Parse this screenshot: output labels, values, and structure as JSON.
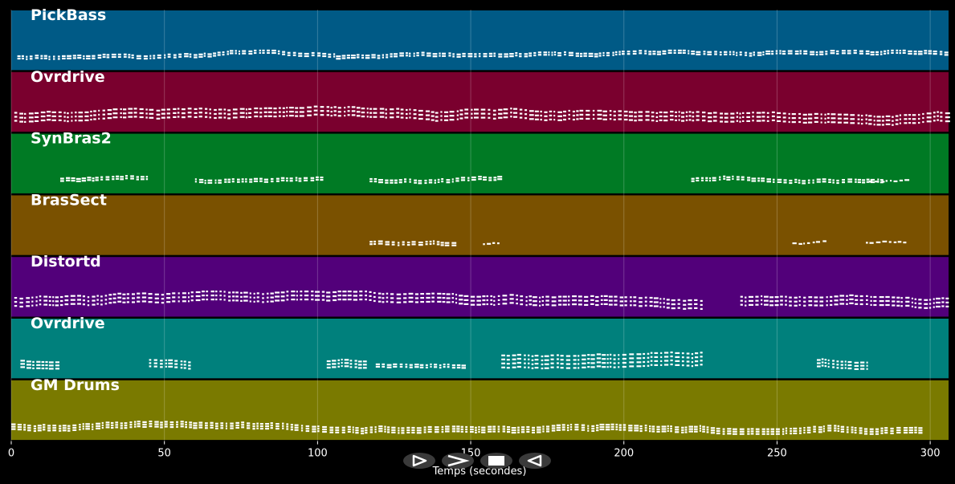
{
  "chart_data": {
    "type": "piano-roll",
    "xlabel": "Temps (secondes)",
    "xlim": [
      0,
      306
    ],
    "xticks": [
      0,
      50,
      100,
      150,
      200,
      250,
      300
    ],
    "grid": true,
    "tracks": [
      {
        "name": "PickBass",
        "color": "#005a86",
        "segments": [
          [
            2,
            106,
            2,
            1
          ],
          [
            106,
            306,
            2,
            1
          ]
        ]
      },
      {
        "name": "Ovrdrive",
        "color": "#7a002e",
        "segments": [
          [
            1,
            306,
            3,
            3
          ]
        ]
      },
      {
        "name": "SynBras2",
        "color": "#007a24",
        "segments": [
          [
            16,
            44,
            2,
            1
          ],
          [
            60,
            102,
            2,
            1
          ],
          [
            117,
            160,
            2,
            1
          ],
          [
            222,
            285,
            2,
            1
          ],
          [
            280,
            293,
            1,
            0
          ]
        ]
      },
      {
        "name": "BrasSect",
        "color": "#7a5100",
        "segments": [
          [
            117,
            146,
            2,
            1
          ],
          [
            154,
            160,
            1,
            0
          ],
          [
            255,
            266,
            1,
            0
          ],
          [
            279,
            293,
            1,
            0
          ]
        ]
      },
      {
        "name": "Distortd",
        "color": "#52007a",
        "segments": [
          [
            1,
            226,
            3,
            3
          ],
          [
            238,
            306,
            3,
            3
          ]
        ]
      },
      {
        "name": "Ovrdrive",
        "color": "#00807c",
        "segments": [
          [
            3,
            16,
            3,
            2
          ],
          [
            45,
            58,
            3,
            2
          ],
          [
            103,
            116,
            3,
            2
          ],
          [
            119,
            147,
            2,
            1
          ],
          [
            160,
            226,
            4,
            3
          ],
          [
            263,
            280,
            3,
            2
          ]
        ]
      },
      {
        "name": "GM Drums",
        "color": "#7a7a00",
        "segments": [
          [
            0,
            298,
            3,
            1
          ]
        ]
      }
    ]
  },
  "transport": {
    "buttons": [
      {
        "name": "play",
        "symbol": "play"
      },
      {
        "name": "fast-forward",
        "symbol": "forward"
      },
      {
        "name": "stop",
        "symbol": "stop"
      },
      {
        "name": "rewind",
        "symbol": "rewind"
      }
    ]
  }
}
